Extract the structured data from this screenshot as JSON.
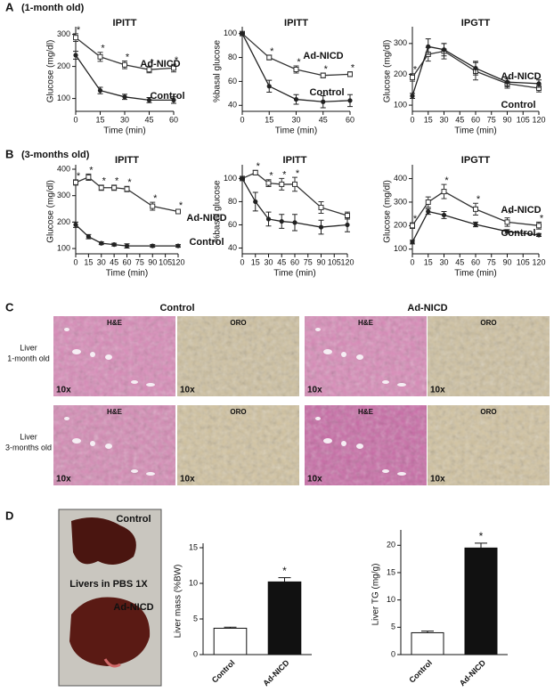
{
  "labels": {
    "a": "A",
    "a_sub": "(1-month old)",
    "b": "B",
    "b_sub": "(3-months old)",
    "c": "C",
    "d": "D"
  },
  "chart_data": [
    {
      "type": "line",
      "title": "IPITT",
      "ylabel": "Glucose (mg/dl)",
      "xlabel": "Time (min)",
      "x": [
        0,
        15,
        30,
        45,
        60
      ],
      "xlim": [
        0,
        60
      ],
      "xticks": [
        0,
        15,
        30,
        45,
        60
      ],
      "ylim": [
        60,
        310
      ],
      "yticks": [
        100,
        200,
        300
      ],
      "series": [
        {
          "name": "Ad-NICD",
          "color": "#333333",
          "marker": "square-open",
          "values": [
            290,
            230,
            205,
            190,
            195
          ],
          "errors": [
            12,
            14,
            12,
            10,
            12
          ],
          "marker_labels": [
            "*",
            "*",
            "*",
            "*",
            "*"
          ]
        },
        {
          "name": "Control",
          "color": "#222222",
          "marker": "circle-filled",
          "values": [
            235,
            125,
            105,
            95,
            95
          ],
          "errors": [
            12,
            10,
            8,
            8,
            10
          ],
          "marker_labels": [
            null,
            null,
            null,
            null,
            null
          ]
        }
      ]
    },
    {
      "type": "line",
      "title": "IPITT",
      "ylabel": "%basal glucose",
      "xlabel": "Time (min)",
      "x": [
        0,
        15,
        30,
        45,
        60
      ],
      "xlim": [
        0,
        60
      ],
      "xticks": [
        0,
        15,
        30,
        45,
        60
      ],
      "ylim": [
        35,
        102
      ],
      "yticks": [
        40,
        60,
        80,
        100
      ],
      "series": [
        {
          "name": "Ad-NICD",
          "color": "#333333",
          "marker": "square-open",
          "values": [
            100,
            80,
            70,
            65,
            66
          ],
          "errors": [
            0,
            2,
            3,
            2,
            2
          ],
          "marker_labels": [
            null,
            "*",
            "*",
            "*",
            "*"
          ]
        },
        {
          "name": "Control",
          "color": "#222222",
          "marker": "circle-filled",
          "values": [
            100,
            56,
            45,
            43,
            44
          ],
          "errors": [
            0,
            5,
            4,
            5,
            5
          ],
          "marker_labels": [
            null,
            null,
            null,
            null,
            null
          ]
        }
      ]
    },
    {
      "type": "line",
      "title": "IPGTT",
      "ylabel": "Glucose (mg/dl)",
      "xlabel": "Time (min)",
      "x": [
        0,
        15,
        30,
        60,
        90,
        120
      ],
      "xlim": [
        0,
        120
      ],
      "xticks": [
        0,
        15,
        30,
        45,
        60,
        75,
        90,
        105,
        120
      ],
      "ylim": [
        80,
        340
      ],
      "yticks": [
        100,
        200,
        300
      ],
      "series": [
        {
          "name": "Ad-NICD",
          "color": "#333333",
          "marker": "square-open",
          "values": [
            190,
            265,
            275,
            210,
            170,
            155
          ],
          "errors": [
            12,
            22,
            25,
            28,
            15,
            12
          ],
          "marker_labels": [
            "*",
            null,
            null,
            null,
            null,
            null
          ]
        },
        {
          "name": "Control",
          "color": "#222222",
          "marker": "circle-filled",
          "values": [
            130,
            290,
            280,
            220,
            175,
            170
          ],
          "errors": [
            8,
            25,
            20,
            22,
            15,
            12
          ],
          "marker_labels": [
            null,
            null,
            null,
            null,
            null,
            null
          ]
        }
      ]
    },
    {
      "type": "line",
      "title": "IPITT",
      "ylabel": "Glucose (mg/dl)",
      "xlabel": "Time (min)",
      "x": [
        0,
        15,
        30,
        45,
        60,
        90,
        120
      ],
      "xlim": [
        0,
        120
      ],
      "xticks": [
        0,
        15,
        30,
        45,
        60,
        75,
        90,
        105,
        120
      ],
      "ylim": [
        80,
        400
      ],
      "yticks": [
        100,
        200,
        300,
        400
      ],
      "series": [
        {
          "name": "Ad-NICD",
          "color": "#333333",
          "marker": "square-open",
          "values": [
            350,
            370,
            330,
            330,
            325,
            260,
            240
          ],
          "errors": [
            10,
            12,
            10,
            10,
            10,
            15,
            8
          ],
          "marker_labels": [
            "*",
            "*",
            "*",
            "*",
            "*",
            "*",
            "*"
          ]
        },
        {
          "name": "Control",
          "color": "#222222",
          "marker": "circle-filled",
          "values": [
            190,
            145,
            120,
            115,
            110,
            110,
            110
          ],
          "errors": [
            10,
            8,
            5,
            5,
            8,
            5,
            5
          ],
          "marker_labels": [
            null,
            null,
            null,
            null,
            null,
            null,
            null
          ]
        }
      ]
    },
    {
      "type": "line",
      "title": "IPITT",
      "ylabel": "%basal glucose",
      "xlabel": "Time (min)",
      "x": [
        0,
        15,
        30,
        45,
        60,
        90,
        120
      ],
      "xlim": [
        0,
        120
      ],
      "xticks": [
        0,
        15,
        30,
        45,
        60,
        75,
        90,
        105,
        120
      ],
      "ylim": [
        35,
        108
      ],
      "yticks": [
        40,
        60,
        80,
        100
      ],
      "series": [
        {
          "color": "#333333",
          "marker": "square-open",
          "values": [
            100,
            105,
            96,
            95,
            95,
            75,
            68
          ],
          "errors": [
            0,
            2,
            3,
            5,
            6,
            5,
            3
          ],
          "marker_labels": [
            null,
            "*",
            "*",
            "*",
            "*",
            null,
            null
          ]
        },
        {
          "color": "#222222",
          "marker": "circle-filled",
          "values": [
            100,
            80,
            65,
            63,
            62,
            58,
            60
          ],
          "errors": [
            0,
            8,
            6,
            6,
            7,
            6,
            6
          ],
          "marker_labels": [
            null,
            null,
            null,
            null,
            null,
            null,
            null
          ]
        }
      ]
    },
    {
      "type": "line",
      "title": "IPGTT",
      "ylabel": "Glucose (mg/dl)",
      "xlabel": "Time (min)",
      "x": [
        0,
        15,
        30,
        60,
        90,
        120
      ],
      "xlim": [
        0,
        120
      ],
      "xticks": [
        0,
        15,
        30,
        45,
        60,
        75,
        90,
        105,
        120
      ],
      "ylim": [
        80,
        440
      ],
      "yticks": [
        100,
        200,
        300,
        400
      ],
      "series": [
        {
          "name": "Ad-NICD",
          "color": "#333333",
          "marker": "square-open",
          "values": [
            200,
            300,
            345,
            270,
            215,
            200
          ],
          "errors": [
            12,
            22,
            30,
            25,
            18,
            15
          ],
          "marker_labels": [
            "*",
            null,
            "*",
            "*",
            "*",
            "*"
          ]
        },
        {
          "name": "Control",
          "color": "#222222",
          "marker": "circle-filled",
          "values": [
            130,
            260,
            245,
            205,
            175,
            160
          ],
          "errors": [
            8,
            12,
            15,
            10,
            8,
            6
          ],
          "marker_labels": [
            null,
            null,
            null,
            null,
            null,
            null
          ]
        }
      ]
    },
    {
      "type": "bar",
      "ylabel": "Liver mass (%BW)",
      "categories": [
        "Control",
        "Ad-NICD"
      ],
      "values": [
        3.7,
        10.2
      ],
      "errors": [
        0.15,
        0.6
      ],
      "colors": [
        "#ffffff",
        "#111111"
      ],
      "marker_labels": [
        null,
        "*"
      ],
      "ylim": [
        0,
        15
      ],
      "yticks": [
        0,
        5,
        10,
        15
      ]
    },
    {
      "type": "bar",
      "ylabel": "Liver TG (mg/g)",
      "categories": [
        "Control",
        "Ad-NICD"
      ],
      "values": [
        4,
        19.5
      ],
      "errors": [
        0.3,
        0.9
      ],
      "colors": [
        "#ffffff",
        "#111111"
      ],
      "marker_labels": [
        null,
        "*"
      ],
      "ylim": [
        0,
        22
      ],
      "yticks": [
        0,
        5,
        10,
        15,
        20
      ]
    }
  ],
  "histology": {
    "columns": [
      "Control",
      "Ad-NICD"
    ],
    "rows": [
      [
        "Liver",
        "1-month old"
      ],
      [
        "Liver",
        "3-months old"
      ]
    ],
    "stains": [
      "H&E",
      "ORO"
    ],
    "magnification": "10x"
  },
  "photo": {
    "labels": [
      "Control",
      "Livers in PBS 1X",
      "Ad-NICD"
    ]
  }
}
